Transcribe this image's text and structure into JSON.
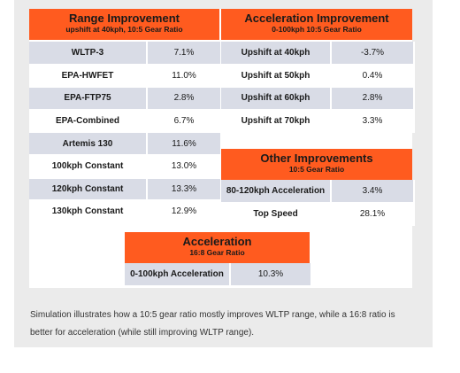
{
  "range": {
    "title": "Range Improvement",
    "subtitle": "upshift at 40kph, 10:5 Gear Ratio",
    "rows": [
      {
        "label": "WLTP-3",
        "value": "7.1%"
      },
      {
        "label": "EPA-HWFET",
        "value": "11.0%"
      },
      {
        "label": "EPA-FTP75",
        "value": "2.8%"
      },
      {
        "label": "EPA-Combined",
        "value": "6.7%"
      },
      {
        "label": "Artemis 130",
        "value": "11.6%"
      },
      {
        "label": "100kph Constant",
        "value": "13.0%"
      },
      {
        "label": "120kph Constant",
        "value": "13.3%"
      },
      {
        "label": "130kph Constant",
        "value": "12.9%"
      }
    ]
  },
  "acceleration_improvement": {
    "title": "Acceleration Improvement",
    "subtitle": "0-100kph 10:5 Gear Ratio",
    "rows": [
      {
        "label": "Upshift at 40kph",
        "value": "-3.7%"
      },
      {
        "label": "Upshift at 50kph",
        "value": "0.4%"
      },
      {
        "label": "Upshift at 60kph",
        "value": "2.8%"
      },
      {
        "label": "Upshift at 70kph",
        "value": "3.3%"
      }
    ]
  },
  "other": {
    "title": "Other Improvements",
    "subtitle": "10:5 Gear Ratio",
    "rows": [
      {
        "label": "80-120kph Acceleration",
        "value": "3.4%"
      },
      {
        "label": "Top Speed",
        "value": "28.1%"
      }
    ]
  },
  "acceleration": {
    "title": "Acceleration",
    "subtitle": "16:8 Gear Ratio",
    "rows": [
      {
        "label": "0-100kph Acceleration",
        "value": "10.3%"
      }
    ]
  },
  "caption": "Simulation illustrates how a 10:5 gear ratio mostly improves WLTP range, while a 16:8 ratio is better for acceleration (while still improving WLTP range)."
}
